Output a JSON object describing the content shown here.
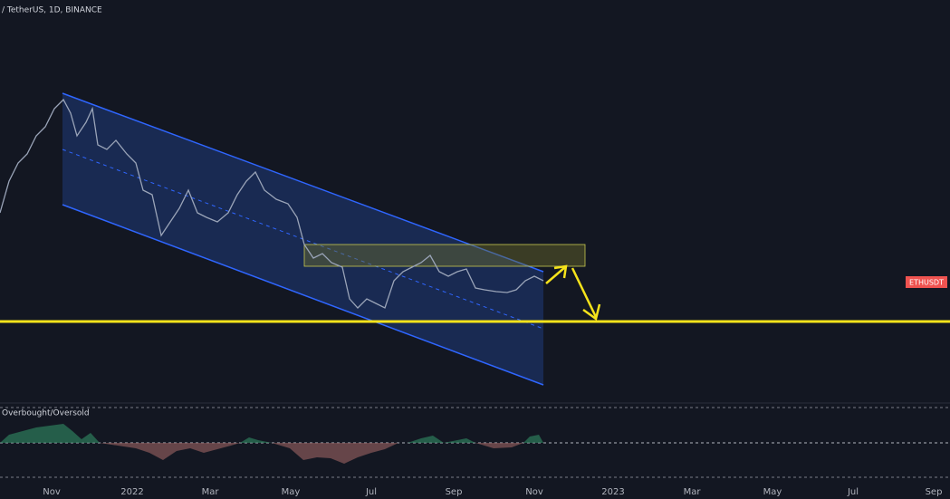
{
  "header": {
    "title": "/ TetherUS, 1D, BINANCE"
  },
  "price_label": "ETHUSDT",
  "indicator": {
    "title": "Overbought/Oversold"
  },
  "time_axis": {
    "labels": [
      "Nov",
      "2022",
      "Mar",
      "May",
      "Jul",
      "Sep",
      "Nov",
      "2023",
      "Mar",
      "May",
      "Jul",
      "Sep"
    ]
  }
}
